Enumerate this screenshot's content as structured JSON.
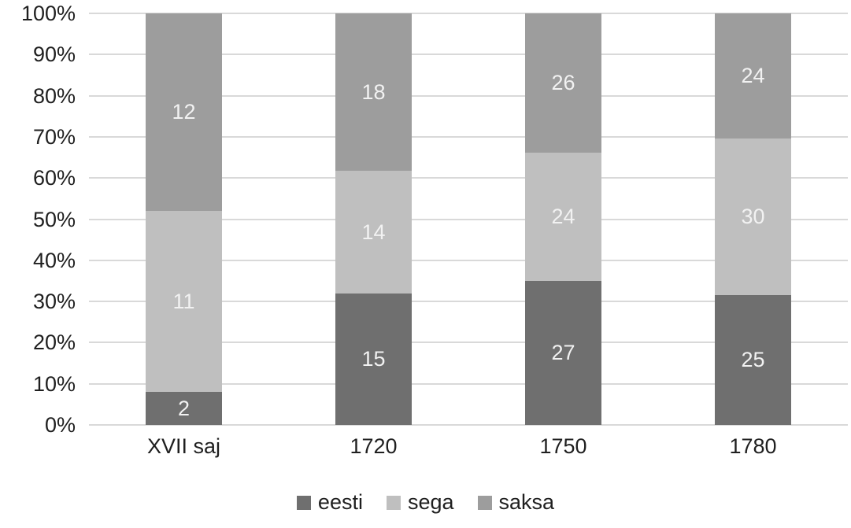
{
  "chart_data": {
    "type": "bar",
    "stacked": true,
    "percent_stacked": true,
    "categories": [
      "XVII saj",
      "1720",
      "1750",
      "1780"
    ],
    "series": [
      {
        "name": "eesti",
        "color": "#6f6f6f",
        "values": [
          2,
          15,
          27,
          25
        ]
      },
      {
        "name": "sega",
        "color": "#bfbfbf",
        "values": [
          11,
          14,
          24,
          30
        ]
      },
      {
        "name": "saksa",
        "color": "#9d9d9d",
        "values": [
          12,
          18,
          26,
          24
        ]
      }
    ],
    "y_ticks": [
      "100%",
      "90%",
      "80%",
      "70%",
      "60%",
      "50%",
      "40%",
      "30%",
      "20%",
      "10%",
      "0%"
    ],
    "ylim": [
      0,
      100
    ],
    "grid": true,
    "gridline_color": "#d9d9d9",
    "axis_text_color": "#1f1f1f",
    "data_label_color": "#f2f2f2",
    "legend_position": "bottom",
    "title": "",
    "xlabel": "",
    "ylabel": ""
  }
}
